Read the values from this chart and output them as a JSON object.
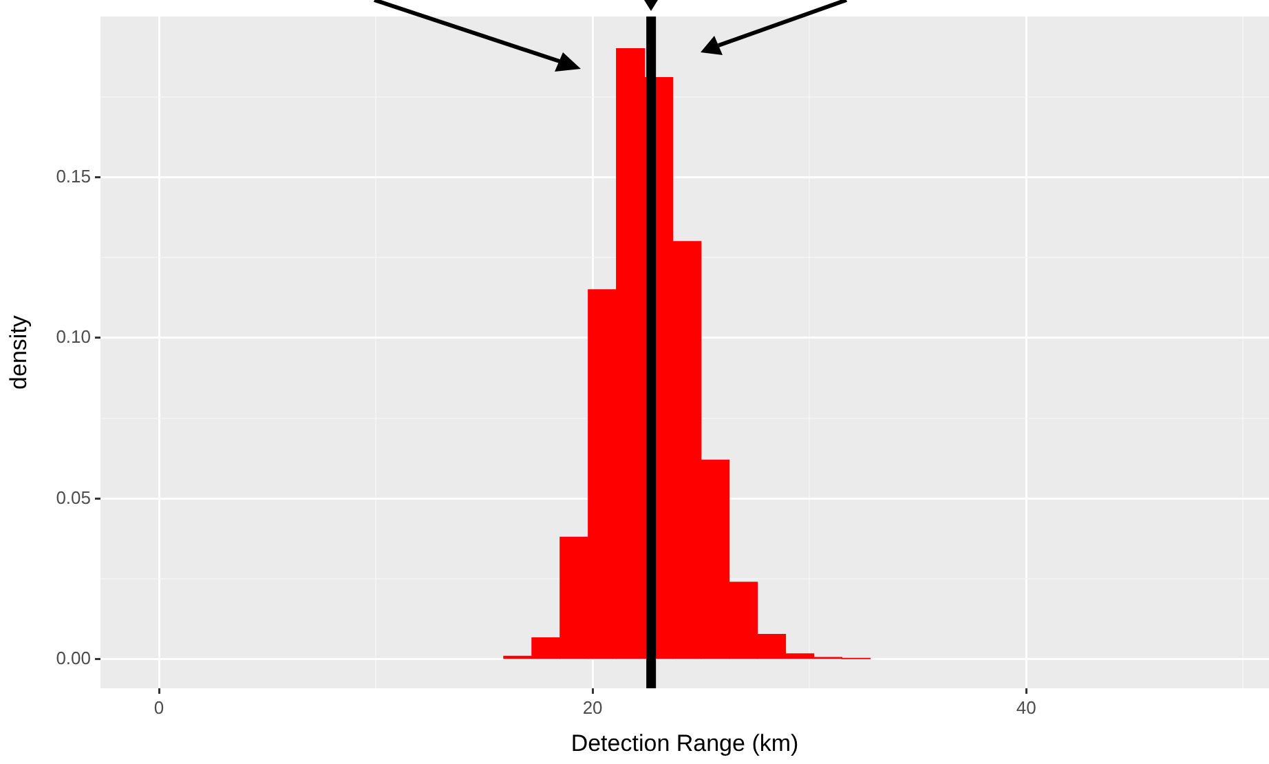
{
  "chart_data": {
    "type": "histogram",
    "xlabel": "Detection Range (km)",
    "ylabel": "density",
    "bins": [
      15.9,
      17.2,
      18.5,
      19.8,
      21.1,
      22.4,
      23.7,
      25.0,
      26.3,
      27.6,
      28.9,
      30.2,
      31.5,
      32.8
    ],
    "values": [
      0.001,
      0.0067,
      0.038,
      0.115,
      0.19,
      0.181,
      0.13,
      0.062,
      0.024,
      0.0078,
      0.0017,
      0.0006,
      0.0002
    ],
    "color": "#ff0000",
    "xlim": [
      -2.7,
      51.2
    ],
    "xticks": [
      0,
      {
        "value": 10,
        "label": null
      },
      20,
      {
        "value": 30,
        "label": null
      },
      40,
      {
        "value": 50,
        "label": null
      }
    ],
    "ylim": [
      -0.009,
      0.2
    ],
    "yticks": [
      "0.00",
      {
        "value": 0.025,
        "label": null
      },
      {
        "value": 0.05,
        "label": "0.05"
      },
      {
        "value": 0.075,
        "label": null
      },
      {
        "value": 0.1,
        "label": "0.10"
      },
      {
        "value": 0.125,
        "label": null
      },
      {
        "value": 0.15,
        "label": "0.15"
      },
      {
        "value": 0.175,
        "label": null
      }
    ],
    "ref_lines": [
      {
        "axis": "x",
        "value": 22.7,
        "color": "#000000"
      }
    ],
    "grid": true,
    "legend": false
  }
}
